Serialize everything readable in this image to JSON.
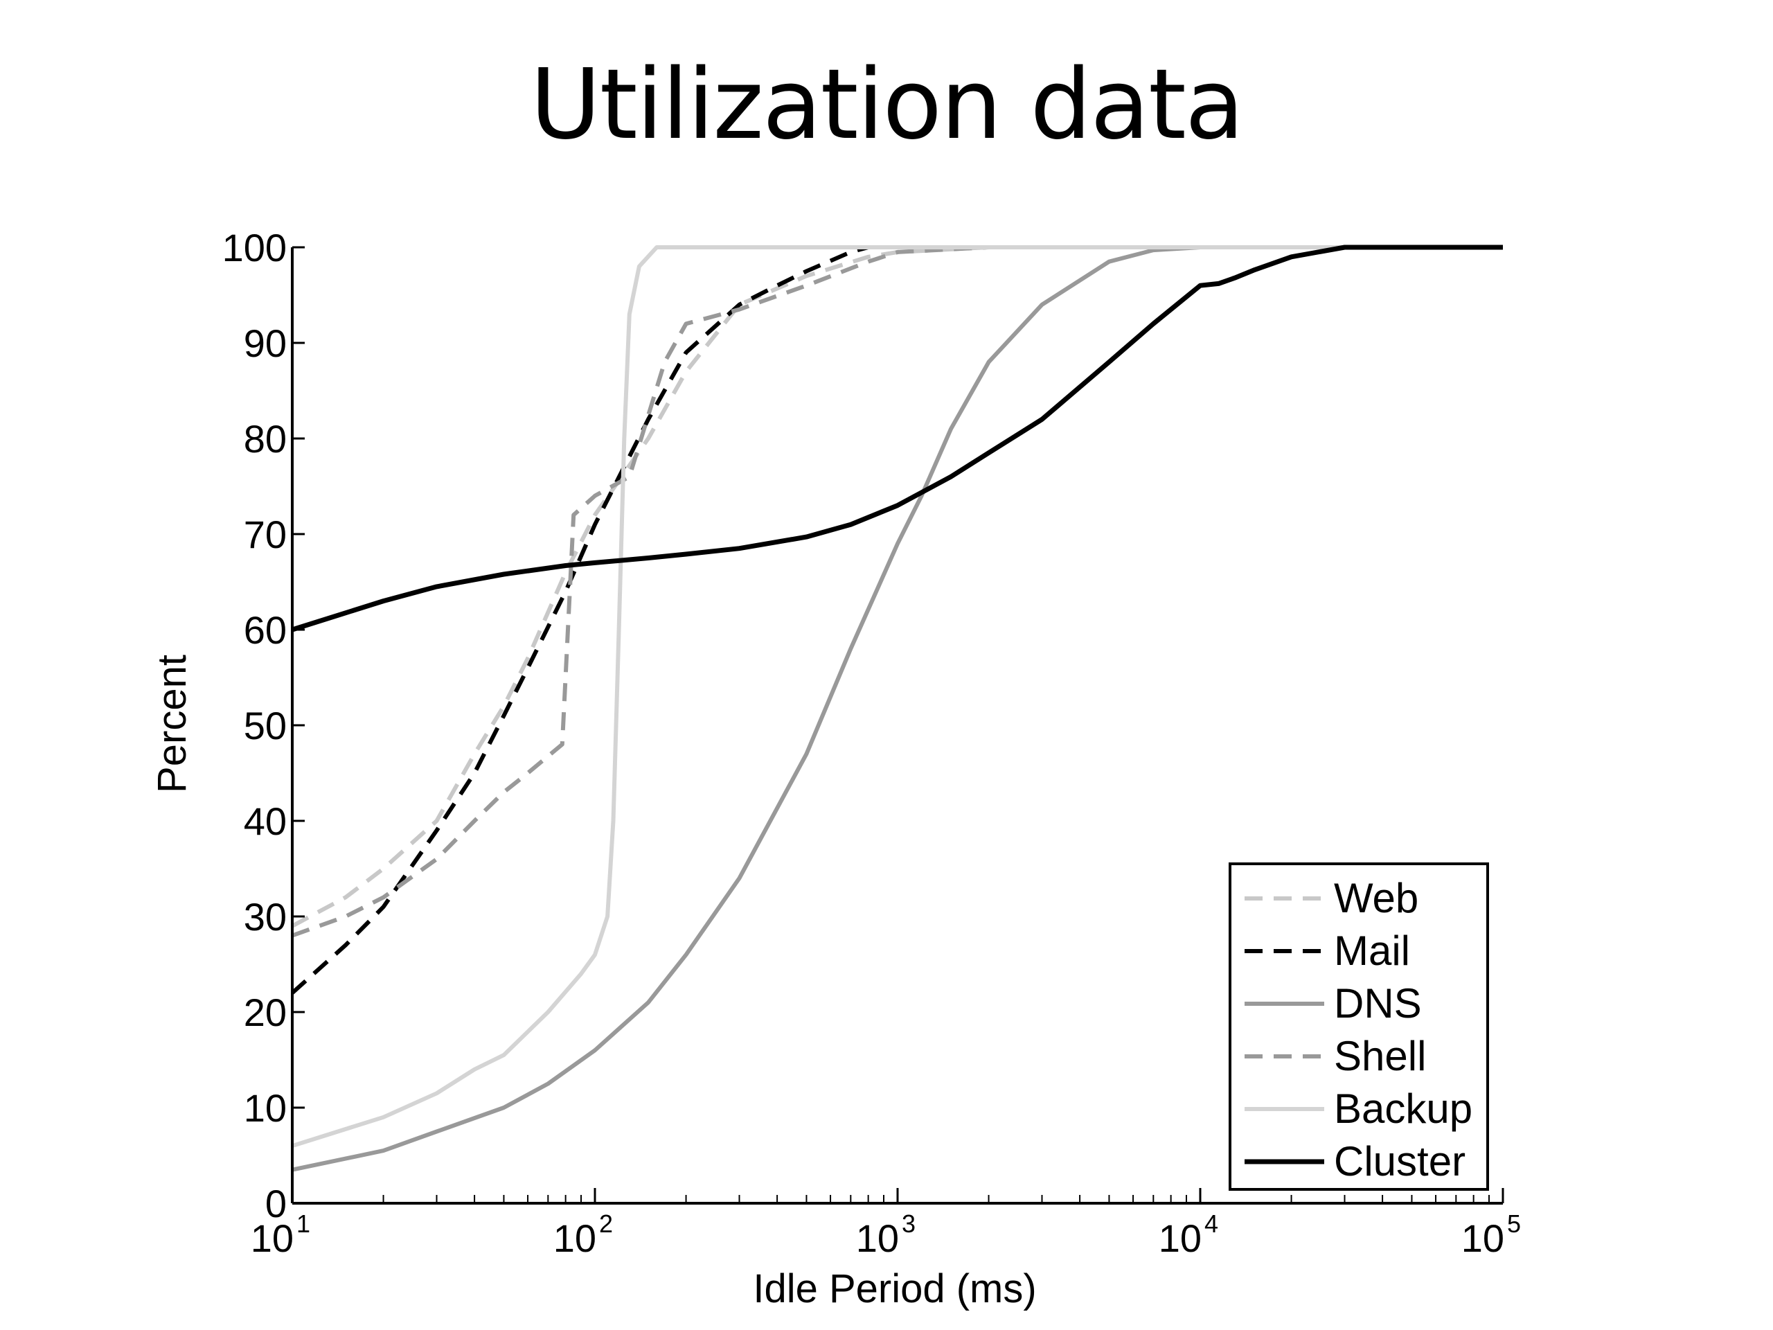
{
  "slide": {
    "title": "Utilization data"
  },
  "chart_data": {
    "type": "line",
    "title": "",
    "xlabel": "Idle Period (ms)",
    "ylabel": "Percent",
    "xscale": "log",
    "xlim": [
      10,
      100000
    ],
    "ylim": [
      0,
      100
    ],
    "x_ticks": [
      {
        "value": 10,
        "base": "10",
        "exp": "1"
      },
      {
        "value": 100,
        "base": "10",
        "exp": "2"
      },
      {
        "value": 1000,
        "base": "10",
        "exp": "3"
      },
      {
        "value": 10000,
        "base": "10",
        "exp": "4"
      },
      {
        "value": 100000,
        "base": "10",
        "exp": "5"
      }
    ],
    "y_ticks": [
      "0",
      "10",
      "20",
      "30",
      "40",
      "50",
      "60",
      "70",
      "80",
      "90",
      "100"
    ],
    "grid": false,
    "legend_position": "bottom-right",
    "series": [
      {
        "name": "Web",
        "color": "#c8c8c8",
        "dash": "dashed",
        "points": [
          [
            10,
            29
          ],
          [
            15,
            32
          ],
          [
            20,
            35
          ],
          [
            30,
            40
          ],
          [
            40,
            47
          ],
          [
            50,
            52
          ],
          [
            60,
            57
          ],
          [
            80,
            66
          ],
          [
            100,
            72
          ],
          [
            150,
            80
          ],
          [
            200,
            87
          ],
          [
            300,
            94
          ],
          [
            500,
            97
          ],
          [
            800,
            99
          ],
          [
            1000,
            99.5
          ],
          [
            2000,
            100
          ],
          [
            100000,
            100
          ]
        ]
      },
      {
        "name": "Mail",
        "color": "#000000",
        "dash": "dashed",
        "points": [
          [
            10,
            22
          ],
          [
            15,
            27
          ],
          [
            20,
            31
          ],
          [
            30,
            39
          ],
          [
            40,
            45
          ],
          [
            50,
            51
          ],
          [
            60,
            56
          ],
          [
            80,
            64
          ],
          [
            100,
            71
          ],
          [
            150,
            82
          ],
          [
            200,
            89
          ],
          [
            300,
            94
          ],
          [
            400,
            96
          ],
          [
            500,
            97.5
          ],
          [
            700,
            99.5
          ],
          [
            800,
            100
          ],
          [
            100000,
            100
          ]
        ]
      },
      {
        "name": "DNS",
        "color": "#999999",
        "dash": "solid",
        "points": [
          [
            10,
            3.5
          ],
          [
            20,
            5.5
          ],
          [
            30,
            7.5
          ],
          [
            50,
            10
          ],
          [
            70,
            12.5
          ],
          [
            100,
            16
          ],
          [
            150,
            21
          ],
          [
            200,
            26
          ],
          [
            300,
            34
          ],
          [
            500,
            47
          ],
          [
            700,
            58
          ],
          [
            1000,
            69
          ],
          [
            1200,
            74
          ],
          [
            1500,
            81
          ],
          [
            2000,
            88
          ],
          [
            3000,
            94
          ],
          [
            5000,
            98.5
          ],
          [
            7000,
            99.7
          ],
          [
            10000,
            100
          ],
          [
            100000,
            100
          ]
        ]
      },
      {
        "name": "Shell",
        "color": "#999999",
        "dash": "dashed",
        "points": [
          [
            10,
            28
          ],
          [
            15,
            30
          ],
          [
            20,
            32
          ],
          [
            30,
            36
          ],
          [
            40,
            40
          ],
          [
            50,
            43
          ],
          [
            60,
            45
          ],
          [
            78,
            48
          ],
          [
            85,
            72
          ],
          [
            100,
            74
          ],
          [
            130,
            76
          ],
          [
            170,
            88
          ],
          [
            200,
            92
          ],
          [
            300,
            93.5
          ],
          [
            500,
            96
          ],
          [
            800,
            98.5
          ],
          [
            1000,
            99.5
          ],
          [
            2000,
            100
          ],
          [
            100000,
            100
          ]
        ]
      },
      {
        "name": "Backup",
        "color": "#d4d4d4",
        "dash": "solid",
        "points": [
          [
            10,
            6
          ],
          [
            20,
            9
          ],
          [
            30,
            11.5
          ],
          [
            40,
            14
          ],
          [
            50,
            15.5
          ],
          [
            70,
            20
          ],
          [
            90,
            24
          ],
          [
            100,
            26
          ],
          [
            110,
            30
          ],
          [
            115,
            40
          ],
          [
            120,
            60
          ],
          [
            125,
            80
          ],
          [
            130,
            93
          ],
          [
            140,
            98
          ],
          [
            160,
            100
          ],
          [
            200,
            100
          ],
          [
            100000,
            100
          ]
        ]
      },
      {
        "name": "Cluster",
        "color": "#000000",
        "dash": "solid",
        "points": [
          [
            10,
            60
          ],
          [
            20,
            63
          ],
          [
            30,
            64.5
          ],
          [
            50,
            65.8
          ],
          [
            80,
            66.7
          ],
          [
            100,
            67
          ],
          [
            150,
            67.5
          ],
          [
            200,
            67.9
          ],
          [
            300,
            68.5
          ],
          [
            500,
            69.7
          ],
          [
            700,
            71
          ],
          [
            1000,
            73
          ],
          [
            1500,
            76
          ],
          [
            2000,
            78.5
          ],
          [
            3000,
            82
          ],
          [
            5000,
            88
          ],
          [
            7000,
            92
          ],
          [
            10000,
            96
          ],
          [
            11500,
            96.2
          ],
          [
            13000,
            96.8
          ],
          [
            15000,
            97.6
          ],
          [
            20000,
            99
          ],
          [
            30000,
            100
          ],
          [
            100000,
            100
          ]
        ]
      }
    ]
  }
}
